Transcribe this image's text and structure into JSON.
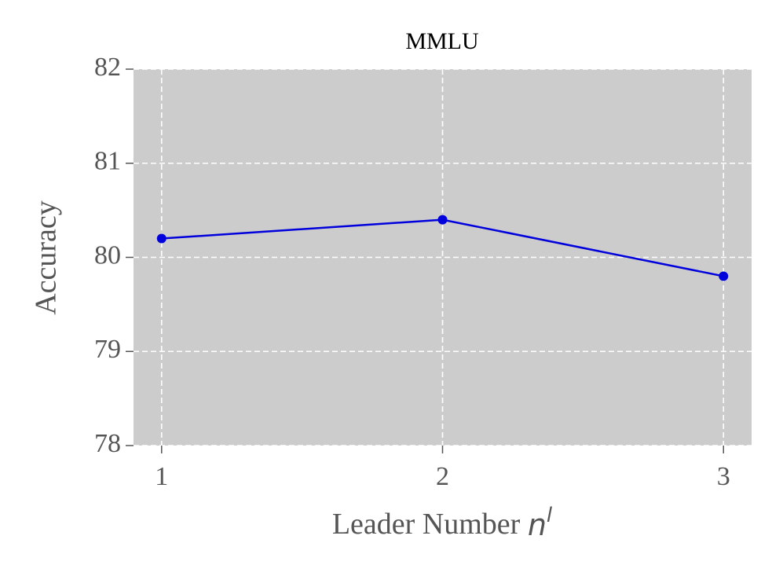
{
  "chart_data": {
    "type": "line",
    "title": "MMLU",
    "xlabel": {
      "text": "Leader Number",
      "symbol": "n",
      "superscript": "l"
    },
    "ylabel": "Accuracy",
    "x": [
      1,
      2,
      3
    ],
    "series": [
      {
        "name": "MMLU",
        "color": "#0000dd",
        "values": [
          80.2,
          80.4,
          79.8
        ]
      }
    ],
    "xlim": [
      0.9,
      3.1
    ],
    "xticks": [
      1,
      2,
      3
    ],
    "ylim": [
      78,
      82
    ],
    "yticks": [
      78,
      79,
      80,
      81,
      82
    ],
    "grid": true
  }
}
